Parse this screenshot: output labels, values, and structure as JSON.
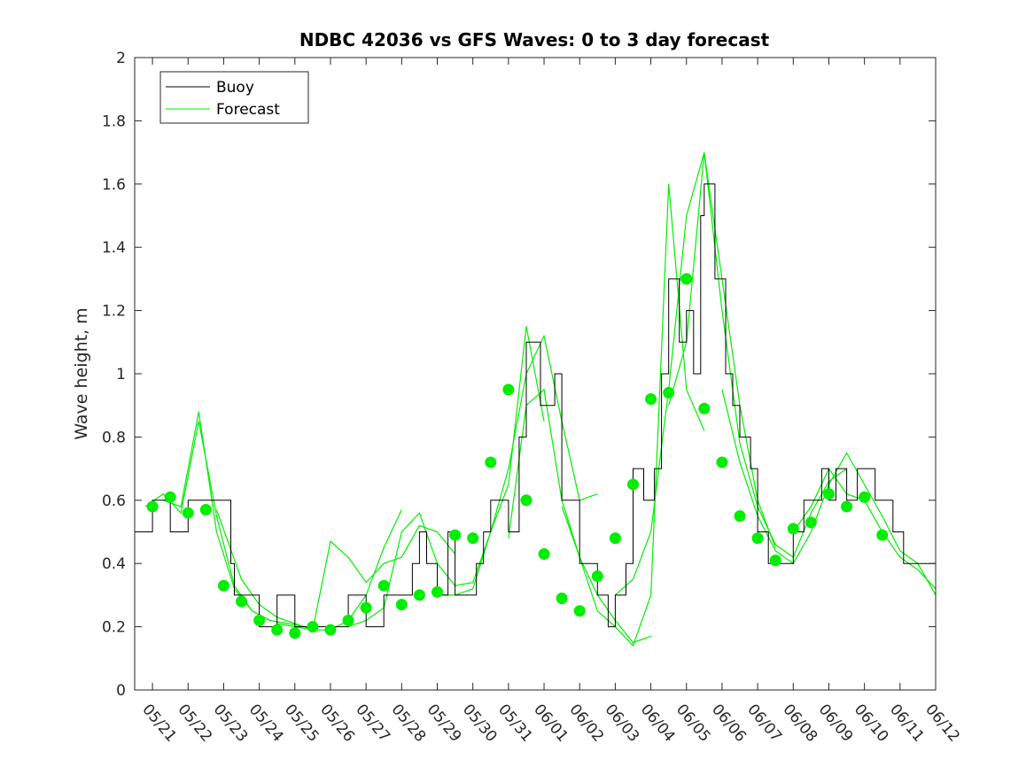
{
  "chart_data": {
    "type": "line",
    "title": "NDBC 42036 vs GFS Waves: 0 to 3 day forecast",
    "xlabel": "",
    "ylabel": "Wave height, m",
    "xlim": [
      "05/20 12:00",
      "06/12 00:00"
    ],
    "ylim": [
      0,
      2
    ],
    "yticks": [
      0,
      0.2,
      0.4,
      0.6,
      0.8,
      1,
      1.2,
      1.4,
      1.6,
      1.8,
      2
    ],
    "ytick_labels": [
      "0",
      "0.2",
      "0.4",
      "0.6",
      "0.8",
      "1",
      "1.2",
      "1.4",
      "1.6",
      "1.8",
      "2"
    ],
    "xtick_labels": [
      "05/21",
      "05/22",
      "05/23",
      "05/24",
      "05/25",
      "05/26",
      "05/27",
      "05/28",
      "05/29",
      "05/30",
      "05/31",
      "06/01",
      "06/02",
      "06/03",
      "06/04",
      "06/05",
      "06/06",
      "06/07",
      "06/08",
      "06/09",
      "06/10",
      "06/11",
      "06/12"
    ],
    "legend": {
      "placement": "top-left",
      "entries": [
        "Buoy",
        "Forecast"
      ]
    },
    "colors": {
      "buoy": "#000000",
      "forecast": "#00ee00",
      "marker": "#00ee00"
    },
    "buoy_series": {
      "name": "Buoy",
      "x_days": [
        0.0,
        0.5,
        1.0,
        1.5,
        2.0,
        2.7,
        2.8,
        3.0,
        3.5,
        4.0,
        4.5,
        5.0,
        5.5,
        6.0,
        6.5,
        7.0,
        7.5,
        7.8,
        8.0,
        8.2,
        8.5,
        8.8,
        9.0,
        9.4,
        9.6,
        9.8,
        10.0,
        10.5,
        10.8,
        11.0,
        11.4,
        11.6,
        11.8,
        12.0,
        12.5,
        13.0,
        13.3,
        13.5,
        13.8,
        14.0,
        14.3,
        14.6,
        14.8,
        15.0,
        15.3,
        15.5,
        15.7,
        15.9,
        16.0,
        16.3,
        16.6,
        16.8,
        17.0,
        17.3,
        17.5,
        17.8,
        18.0,
        18.5,
        18.8,
        19.0,
        19.3,
        19.5,
        19.7,
        20.0,
        20.3,
        20.6,
        20.8,
        21.0,
        21.3,
        21.6,
        22.0,
        22.5
      ],
      "values": [
        0.5,
        0.6,
        0.5,
        0.6,
        0.6,
        0.4,
        0.3,
        0.3,
        0.2,
        0.3,
        0.2,
        0.2,
        0.2,
        0.3,
        0.2,
        0.3,
        0.3,
        0.4,
        0.5,
        0.4,
        0.3,
        0.5,
        0.3,
        0.3,
        0.4,
        0.5,
        0.6,
        0.5,
        0.8,
        1.1,
        0.9,
        0.9,
        1.0,
        0.6,
        0.4,
        0.3,
        0.2,
        0.3,
        0.4,
        0.7,
        0.6,
        0.7,
        1.0,
        1.3,
        1.1,
        1.2,
        1.0,
        1.5,
        1.6,
        1.3,
        1.0,
        0.9,
        0.8,
        0.7,
        0.5,
        0.4,
        0.4,
        0.5,
        0.6,
        0.6,
        0.7,
        0.6,
        0.7,
        0.6,
        0.7,
        0.7,
        0.6,
        0.6,
        0.5,
        0.4,
        0.4,
        0.4
      ]
    },
    "forecast_series": [
      {
        "x_days": [
          0.3,
          0.8,
          1.3,
          1.8,
          2.3,
          2.8,
          3.3,
          3.8
        ],
        "values": [
          0.58,
          0.62,
          0.56,
          0.85,
          0.55,
          0.33,
          0.25,
          0.22
        ]
      },
      {
        "x_days": [
          0.8,
          1.3,
          1.8,
          2.3,
          2.8,
          3.3,
          3.8,
          4.3,
          4.8
        ],
        "values": [
          0.6,
          0.58,
          0.88,
          0.5,
          0.32,
          0.25,
          0.22,
          0.21,
          0.2
        ]
      },
      {
        "x_days": [
          2.3,
          3.0,
          3.5,
          4.0,
          4.5,
          5.0,
          5.5,
          6.0,
          6.5,
          7.0,
          7.5
        ],
        "values": [
          0.57,
          0.35,
          0.27,
          0.23,
          0.21,
          0.19,
          0.19,
          0.22,
          0.3,
          0.45,
          0.57
        ]
      },
      {
        "x_days": [
          4.0,
          4.5,
          5.0,
          5.5,
          6.0,
          6.5,
          7.0,
          7.5,
          8.0,
          8.5,
          9.0
        ],
        "values": [
          0.21,
          0.2,
          0.19,
          0.47,
          0.42,
          0.34,
          0.4,
          0.42,
          0.52,
          0.5,
          0.43
        ]
      },
      {
        "x_days": [
          6.0,
          6.5,
          7.0,
          7.5,
          8.0,
          8.5,
          9.0,
          9.5,
          10.0,
          10.5,
          11.0,
          11.5
        ],
        "values": [
          0.2,
          0.22,
          0.26,
          0.5,
          0.56,
          0.4,
          0.33,
          0.34,
          0.5,
          0.65,
          1.15,
          0.85
        ]
      },
      {
        "x_days": [
          8.5,
          9.0,
          9.5,
          10.0,
          10.5,
          11.0,
          11.5,
          12.0,
          12.5,
          13.0
        ],
        "values": [
          0.3,
          0.3,
          0.32,
          0.5,
          0.7,
          1.0,
          1.12,
          0.85,
          0.6,
          0.62
        ]
      },
      {
        "x_days": [
          10.5,
          11.0,
          11.5,
          12.0,
          12.5,
          13.0,
          13.5,
          14.0,
          14.5
        ],
        "values": [
          0.48,
          0.9,
          0.95,
          0.6,
          0.42,
          0.3,
          0.22,
          0.15,
          0.17
        ]
      },
      {
        "x_days": [
          12.0,
          12.5,
          13.0,
          13.5,
          14.0,
          14.5,
          15.0,
          15.5,
          16.0
        ],
        "values": [
          0.58,
          0.42,
          0.25,
          0.2,
          0.14,
          0.3,
          1.6,
          0.95,
          0.82
        ]
      },
      {
        "x_days": [
          13.5,
          14.0,
          14.5,
          15.0,
          15.5,
          16.0,
          16.5,
          17.0,
          17.5,
          18.0
        ],
        "values": [
          0.3,
          0.35,
          0.5,
          0.95,
          1.5,
          1.7,
          1.3,
          0.9,
          0.6,
          0.45
        ]
      },
      {
        "x_days": [
          15.0,
          15.5,
          16.0,
          16.5,
          17.0,
          17.5,
          18.0,
          18.5,
          19.0,
          19.5,
          20.0
        ],
        "values": [
          0.9,
          1.1,
          1.7,
          1.2,
          0.78,
          0.58,
          0.46,
          0.42,
          0.56,
          0.66,
          0.7
        ]
      },
      {
        "x_days": [
          16.5,
          17.0,
          17.5,
          18.0,
          18.5,
          19.0,
          19.5,
          20.0,
          20.5,
          21.0,
          21.5,
          22.0,
          22.5
        ],
        "values": [
          0.95,
          0.72,
          0.55,
          0.44,
          0.4,
          0.5,
          0.65,
          0.75,
          0.65,
          0.55,
          0.44,
          0.4,
          0.3
        ]
      },
      {
        "x_days": [
          18.5,
          19.0,
          19.5,
          20.0,
          20.5,
          21.0,
          21.5,
          22.0,
          22.5
        ],
        "values": [
          0.5,
          0.58,
          0.7,
          0.62,
          0.6,
          0.5,
          0.42,
          0.38,
          0.32
        ]
      }
    ],
    "forecast_markers": {
      "x_days": [
        0.5,
        1.0,
        1.5,
        2.0,
        2.5,
        3.0,
        3.5,
        4.0,
        4.5,
        5.0,
        5.5,
        6.0,
        6.5,
        7.0,
        7.5,
        8.0,
        8.5,
        9.0,
        9.5,
        10.0,
        10.5,
        11.0,
        11.5,
        12.0,
        12.5,
        13.0,
        13.5,
        14.0,
        14.5,
        15.0,
        15.5,
        16.0,
        16.5,
        17.0,
        17.5,
        18.0,
        18.5,
        19.0,
        19.5,
        20.0,
        20.5,
        21.0
      ],
      "values": [
        0.58,
        0.61,
        0.56,
        0.57,
        0.33,
        0.28,
        0.22,
        0.19,
        0.18,
        0.2,
        0.19,
        0.22,
        0.26,
        0.33,
        0.27,
        0.3,
        0.31,
        0.49,
        0.48,
        0.72,
        0.95,
        0.6,
        0.43,
        0.29,
        0.25,
        0.36,
        0.48,
        0.65,
        0.92,
        0.94,
        1.3,
        0.89,
        0.72,
        0.55,
        0.48,
        0.41,
        0.51,
        0.53,
        0.62,
        0.58,
        0.61,
        0.49
      ]
    }
  }
}
